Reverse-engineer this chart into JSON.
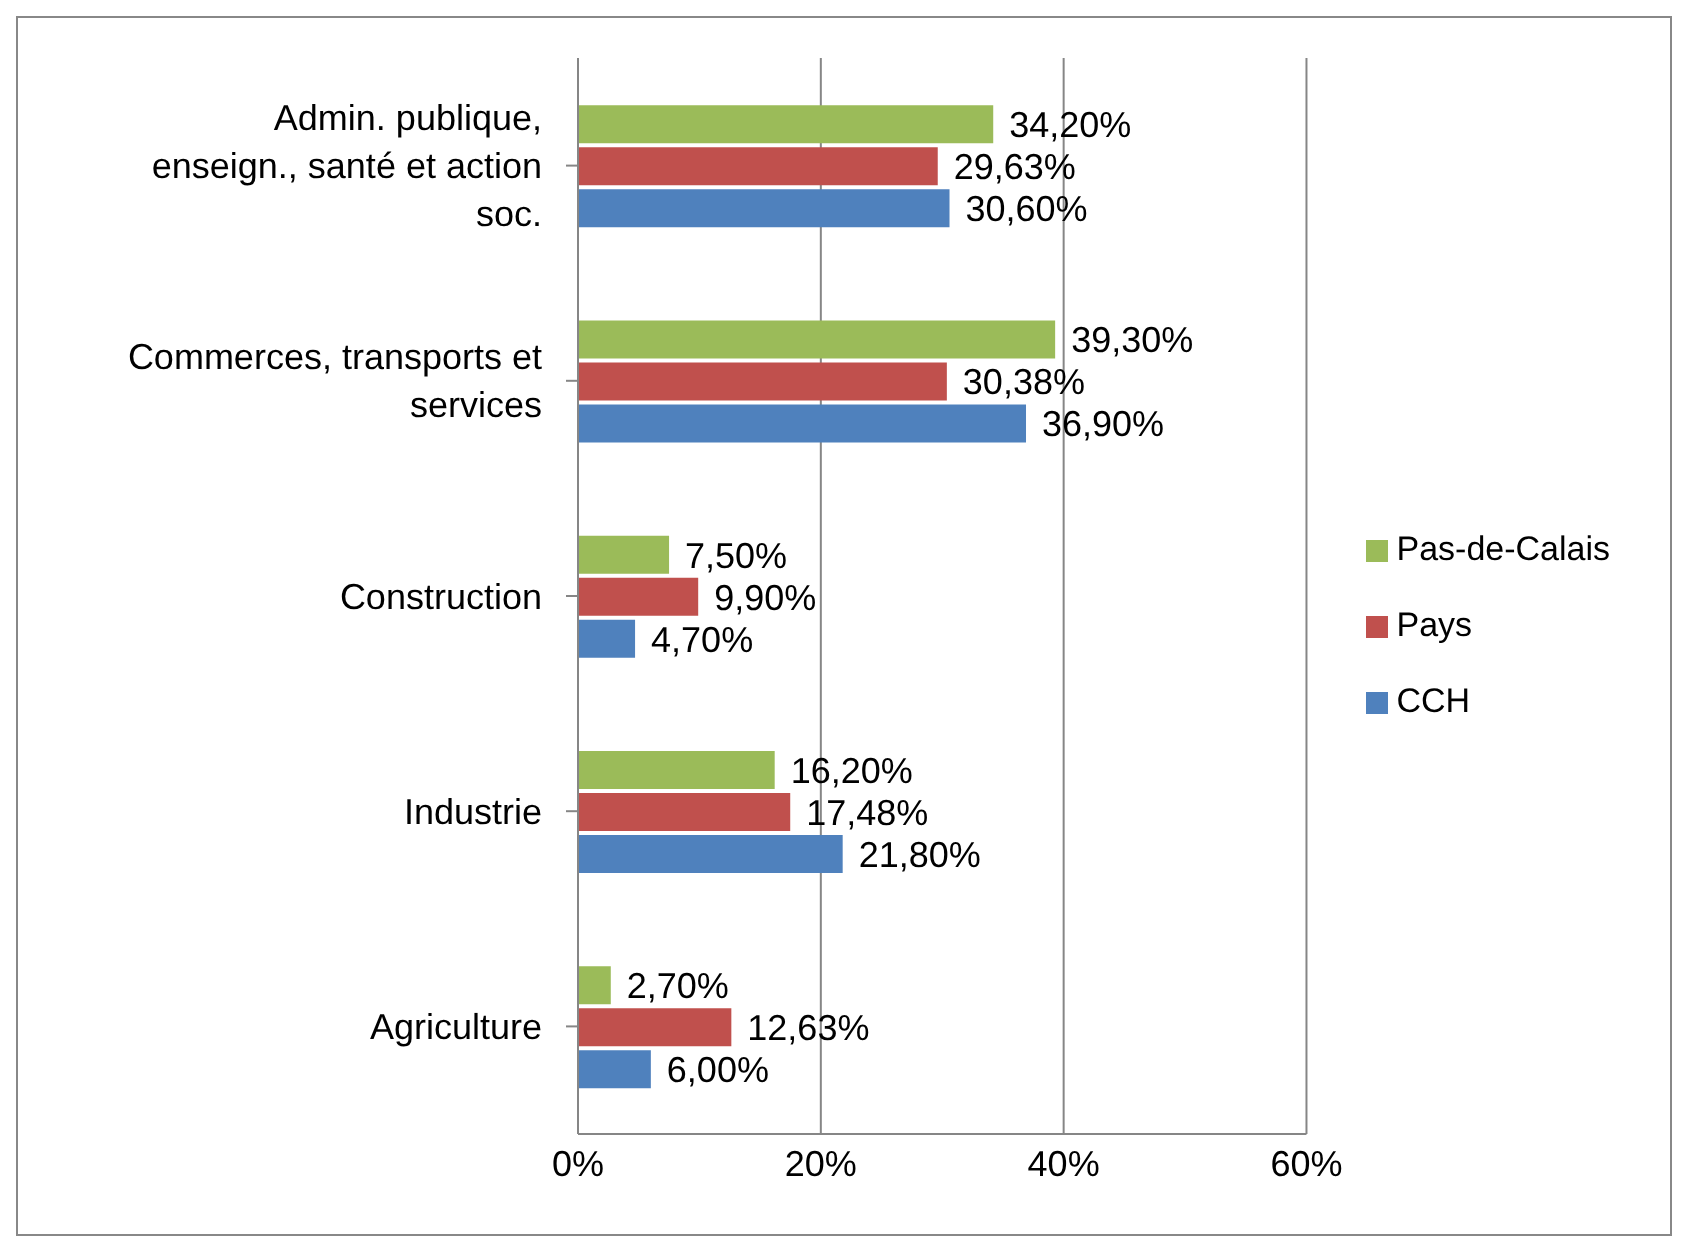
{
  "chart_data": {
    "type": "bar",
    "orientation": "horizontal",
    "categories": [
      "Admin. publique, enseign., santé et action soc.",
      "Commerces, transports et services",
      "Construction",
      "Industrie",
      "Agriculture"
    ],
    "series": [
      {
        "name": "Pas-de-Calais",
        "color": "#9bbb59",
        "values": [
          34.2,
          39.3,
          7.5,
          16.2,
          2.7
        ],
        "value_labels": [
          "34,20%",
          "39,30%",
          "7,50%",
          "16,20%",
          "2,70%"
        ]
      },
      {
        "name": "Pays",
        "color": "#c0504d",
        "values": [
          29.63,
          30.38,
          9.9,
          17.48,
          12.63
        ],
        "value_labels": [
          "29,63%",
          "30,38%",
          "9,90%",
          "17,48%",
          "12,63%"
        ]
      },
      {
        "name": "CCH",
        "color": "#4f81bd",
        "values": [
          30.6,
          36.9,
          4.7,
          21.8,
          6.0
        ],
        "value_labels": [
          "30,60%",
          "36,90%",
          "4,70%",
          "21,80%",
          "6,00%"
        ]
      }
    ],
    "xlim": [
      0,
      60
    ],
    "xticks": [
      {
        "value": 0,
        "label": "0%"
      },
      {
        "value": 20,
        "label": "20%"
      },
      {
        "value": 40,
        "label": "40%"
      },
      {
        "value": 60,
        "label": "60%"
      }
    ],
    "grid": "x",
    "legend": "right"
  }
}
